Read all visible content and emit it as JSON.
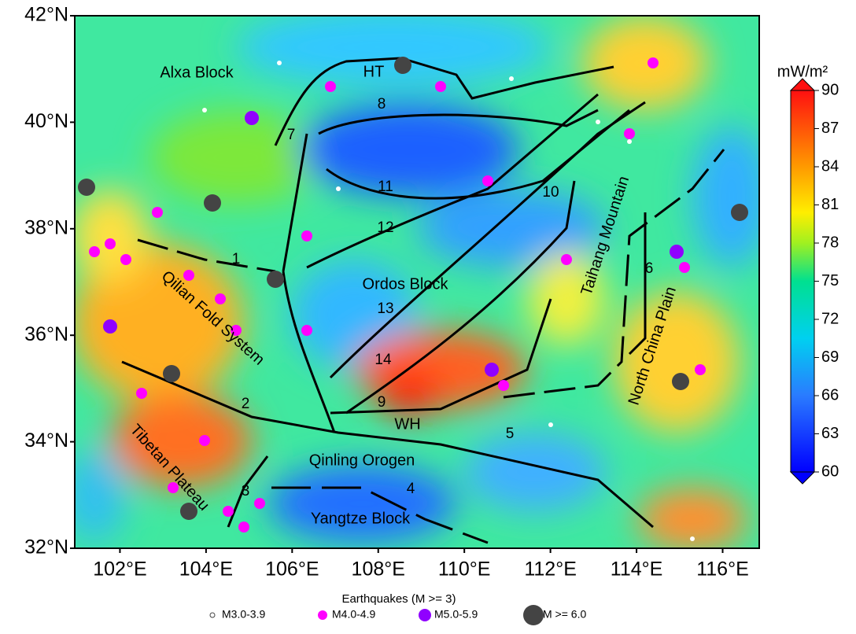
{
  "map": {
    "lat_ticks": [
      {
        "value": 42,
        "label": "42°N"
      },
      {
        "value": 40,
        "label": "40°N"
      },
      {
        "value": 38,
        "label": "38°N"
      },
      {
        "value": 36,
        "label": "36°N"
      },
      {
        "value": 34,
        "label": "34°N"
      },
      {
        "value": 32,
        "label": "32°N"
      }
    ],
    "lon_ticks": [
      {
        "value": 102,
        "label": "102°E"
      },
      {
        "value": 104,
        "label": "104°E"
      },
      {
        "value": 106,
        "label": "106°E"
      },
      {
        "value": 108,
        "label": "108°E"
      },
      {
        "value": 110,
        "label": "110°E"
      },
      {
        "value": 112,
        "label": "112°E"
      },
      {
        "value": 114,
        "label": "114°E"
      },
      {
        "value": 116,
        "label": "116°E"
      }
    ],
    "xlim": [
      100.95,
      116.85
    ],
    "ylim": [
      32,
      42
    ],
    "regions": [
      "Alxa Block",
      "HT",
      "Ordos Block",
      "Qilian Fold System",
      "Tibetan Plateau",
      "WH",
      "Qinling Orogen",
      "Yangtze Block",
      "Taihang Mountain",
      "North China Plain"
    ],
    "faults": [
      "1",
      "2",
      "3",
      "4",
      "5",
      "6",
      "7",
      "8",
      "9",
      "10",
      "11",
      "12",
      "13",
      "14"
    ],
    "colorbar": {
      "unit": "mW/m²",
      "clim": [
        60,
        90
      ],
      "ticks": [
        90,
        87,
        84,
        81,
        78,
        75,
        72,
        69,
        66,
        63,
        60
      ]
    },
    "legend": {
      "title": "Earthquakes (M >= 3)",
      "items": [
        "M3.0-3.9",
        "M4.0-4.9",
        "M5.0-5.9",
        "M >= 6.0"
      ]
    }
  }
}
